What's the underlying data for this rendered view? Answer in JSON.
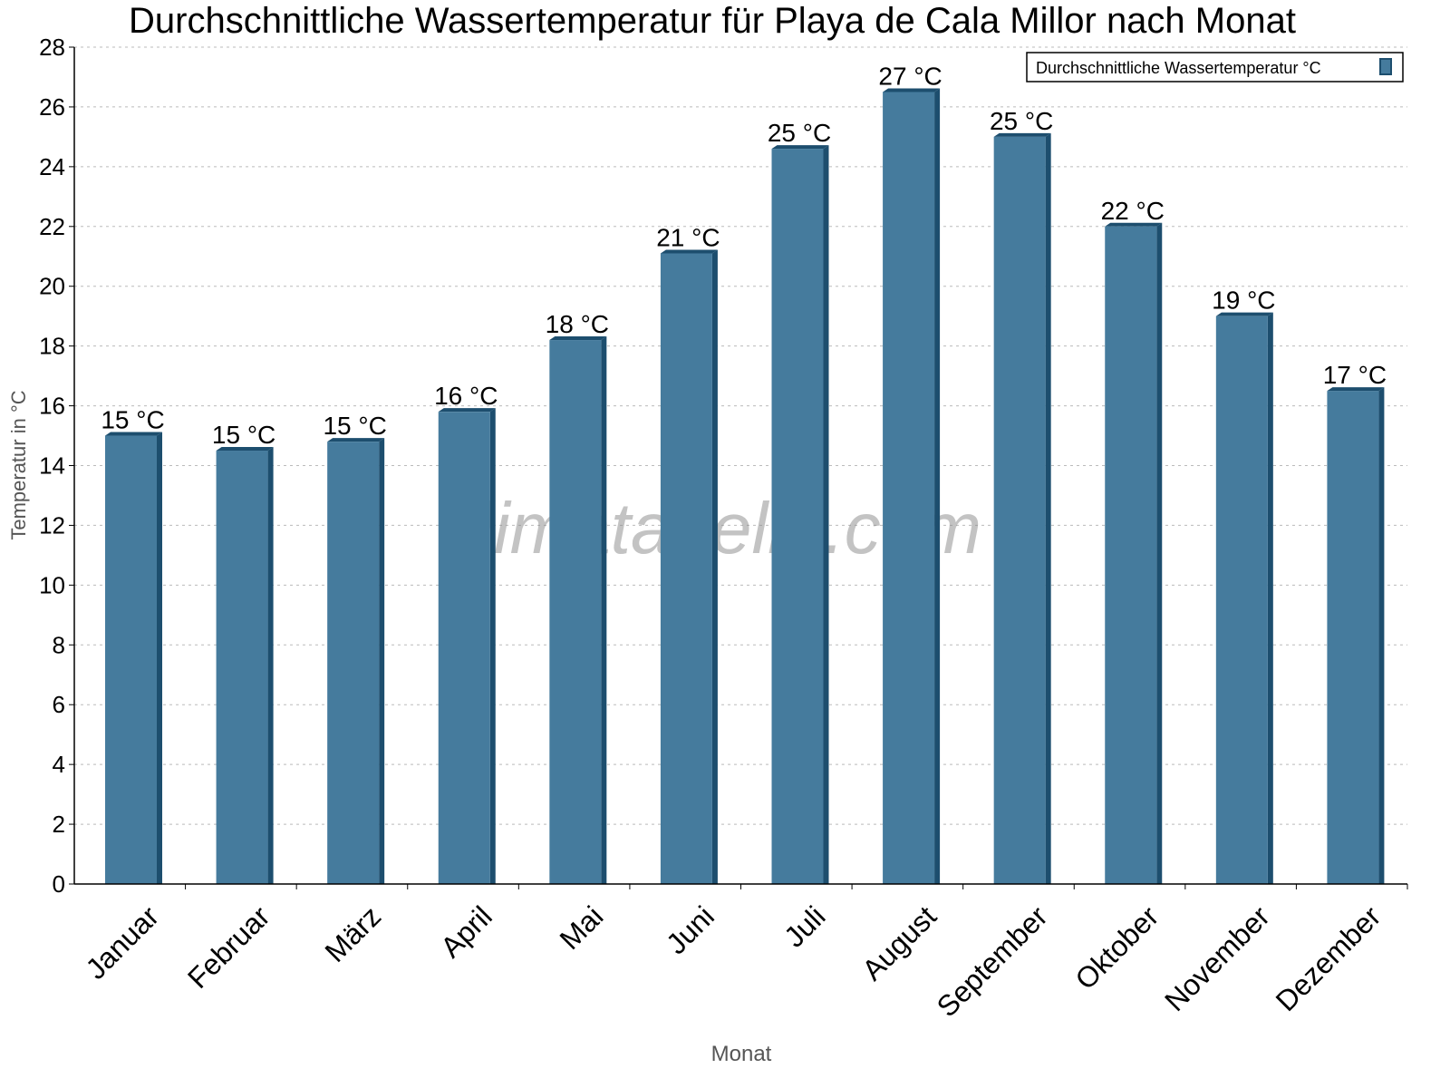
{
  "chart_data": {
    "type": "bar",
    "title": "Durchschnittliche Wassertemperatur für Playa de Cala Millor nach Monat",
    "xlabel": "Monat",
    "ylabel": "Temperatur in °C",
    "ylim": [
      0,
      28
    ],
    "yticks": [
      0,
      2,
      4,
      6,
      8,
      10,
      12,
      14,
      16,
      18,
      20,
      22,
      24,
      26,
      28
    ],
    "grid": true,
    "legend_position": "top-right",
    "watermark": "klimatabelle.com",
    "categories": [
      "Januar",
      "Februar",
      "März",
      "April",
      "Mai",
      "Juni",
      "Juli",
      "August",
      "September",
      "Oktober",
      "November",
      "Dezember"
    ],
    "series": [
      {
        "name": "Durchschnittliche Wassertemperatur °C",
        "color": "#457b9d",
        "side_color": "#1d4e6e",
        "values": [
          15.0,
          14.5,
          14.8,
          15.8,
          18.2,
          21.1,
          24.6,
          26.5,
          25.0,
          22.0,
          19.0,
          16.5
        ],
        "labels": [
          "15 °C",
          "15 °C",
          "15 °C",
          "16 °C",
          "18 °C",
          "21 °C",
          "25 °C",
          "27 °C",
          "25 °C",
          "22 °C",
          "19 °C",
          "17 °C"
        ]
      }
    ]
  }
}
